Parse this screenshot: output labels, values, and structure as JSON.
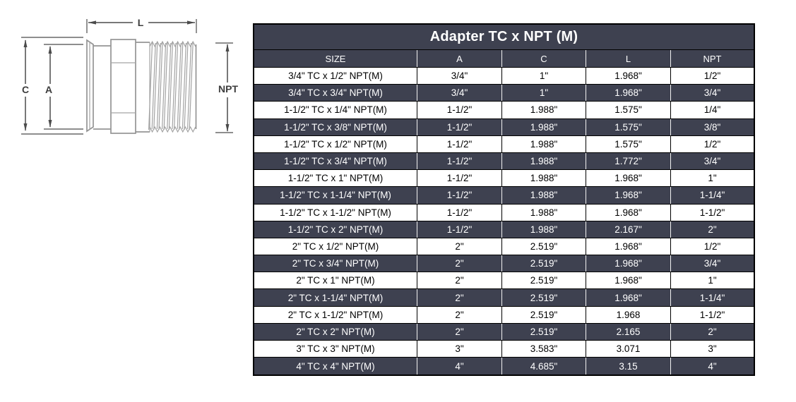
{
  "diagram": {
    "labels": {
      "length": "L",
      "clamp_od": "C",
      "tube_od": "A",
      "thread": "NPT"
    }
  },
  "table": {
    "title": "Adapter TC x NPT (M)",
    "columns": [
      "SIZE",
      "A",
      "C",
      "L",
      "NPT"
    ],
    "rows": [
      [
        "3/4\" TC x 1/2\" NPT(M)",
        "3/4\"",
        "1\"",
        "1.968\"",
        "1/2\""
      ],
      [
        "3/4\" TC x 3/4\" NPT(M)",
        "3/4\"",
        "1\"",
        "1.968\"",
        "3/4\""
      ],
      [
        "1-1/2\" TC x 1/4\" NPT(M)",
        "1-1/2\"",
        "1.988\"",
        "1.575\"",
        "1/4\""
      ],
      [
        "1-1/2\" TC x 3/8\" NPT(M)",
        "1-1/2\"",
        "1.988\"",
        "1.575\"",
        "3/8\""
      ],
      [
        "1-1/2\" TC x 1/2\" NPT(M)",
        "1-1/2\"",
        "1.988\"",
        "1.575\"",
        "1/2\""
      ],
      [
        "1-1/2\" TC x 3/4\" NPT(M)",
        "1-1/2\"",
        "1.988\"",
        "1.772\"",
        "3/4\""
      ],
      [
        "1-1/2\" TC x 1\" NPT(M)",
        "1-1/2\"",
        "1.988\"",
        "1.968\"",
        "1\""
      ],
      [
        "1-1/2\" TC x 1-1/4\" NPT(M)",
        "1-1/2\"",
        "1.988\"",
        "1.968\"",
        "1-1/4\""
      ],
      [
        "1-1/2\" TC x 1-1/2\" NPT(M)",
        "1-1/2\"",
        "1.988\"",
        "1.968\"",
        "1-1/2\""
      ],
      [
        "1-1/2\" TC x 2\" NPT(M)",
        "1-1/2\"",
        "1.988\"",
        "2.167\"",
        "2\""
      ],
      [
        "2\" TC x 1/2\" NPT(M)",
        "2\"",
        "2.519\"",
        "1.968\"",
        "1/2\""
      ],
      [
        "2\" TC x 3/4\" NPT(M)",
        "2\"",
        "2.519\"",
        "1.968\"",
        "3/4\""
      ],
      [
        "2\" TC x 1\" NPT(M)",
        "2\"",
        "2.519\"",
        "1.968\"",
        "1\""
      ],
      [
        "2\" TC x 1-1/4\" NPT(M)",
        "2\"",
        "2.519\"",
        "1.968\"",
        "1-1/4\""
      ],
      [
        "2\" TC x 1-1/2\" NPT(M)",
        "2\"",
        "2.519\"",
        "1.968",
        "1-1/2\""
      ],
      [
        "2\" TC x 2\" NPT(M)",
        "2\"",
        "2.519\"",
        "2.165",
        "2\""
      ],
      [
        "3\" TC x 3\" NPT(M)",
        "3\"",
        "3.583\"",
        "3.071",
        "3\""
      ],
      [
        "4\" TC x 4\" NPT(M)",
        "4\"",
        "4.685\"",
        "3.15",
        "4\""
      ]
    ]
  },
  "colors": {
    "dark_row": "#3E4150",
    "light_row": "#FFFFFF",
    "border": "#000000"
  }
}
